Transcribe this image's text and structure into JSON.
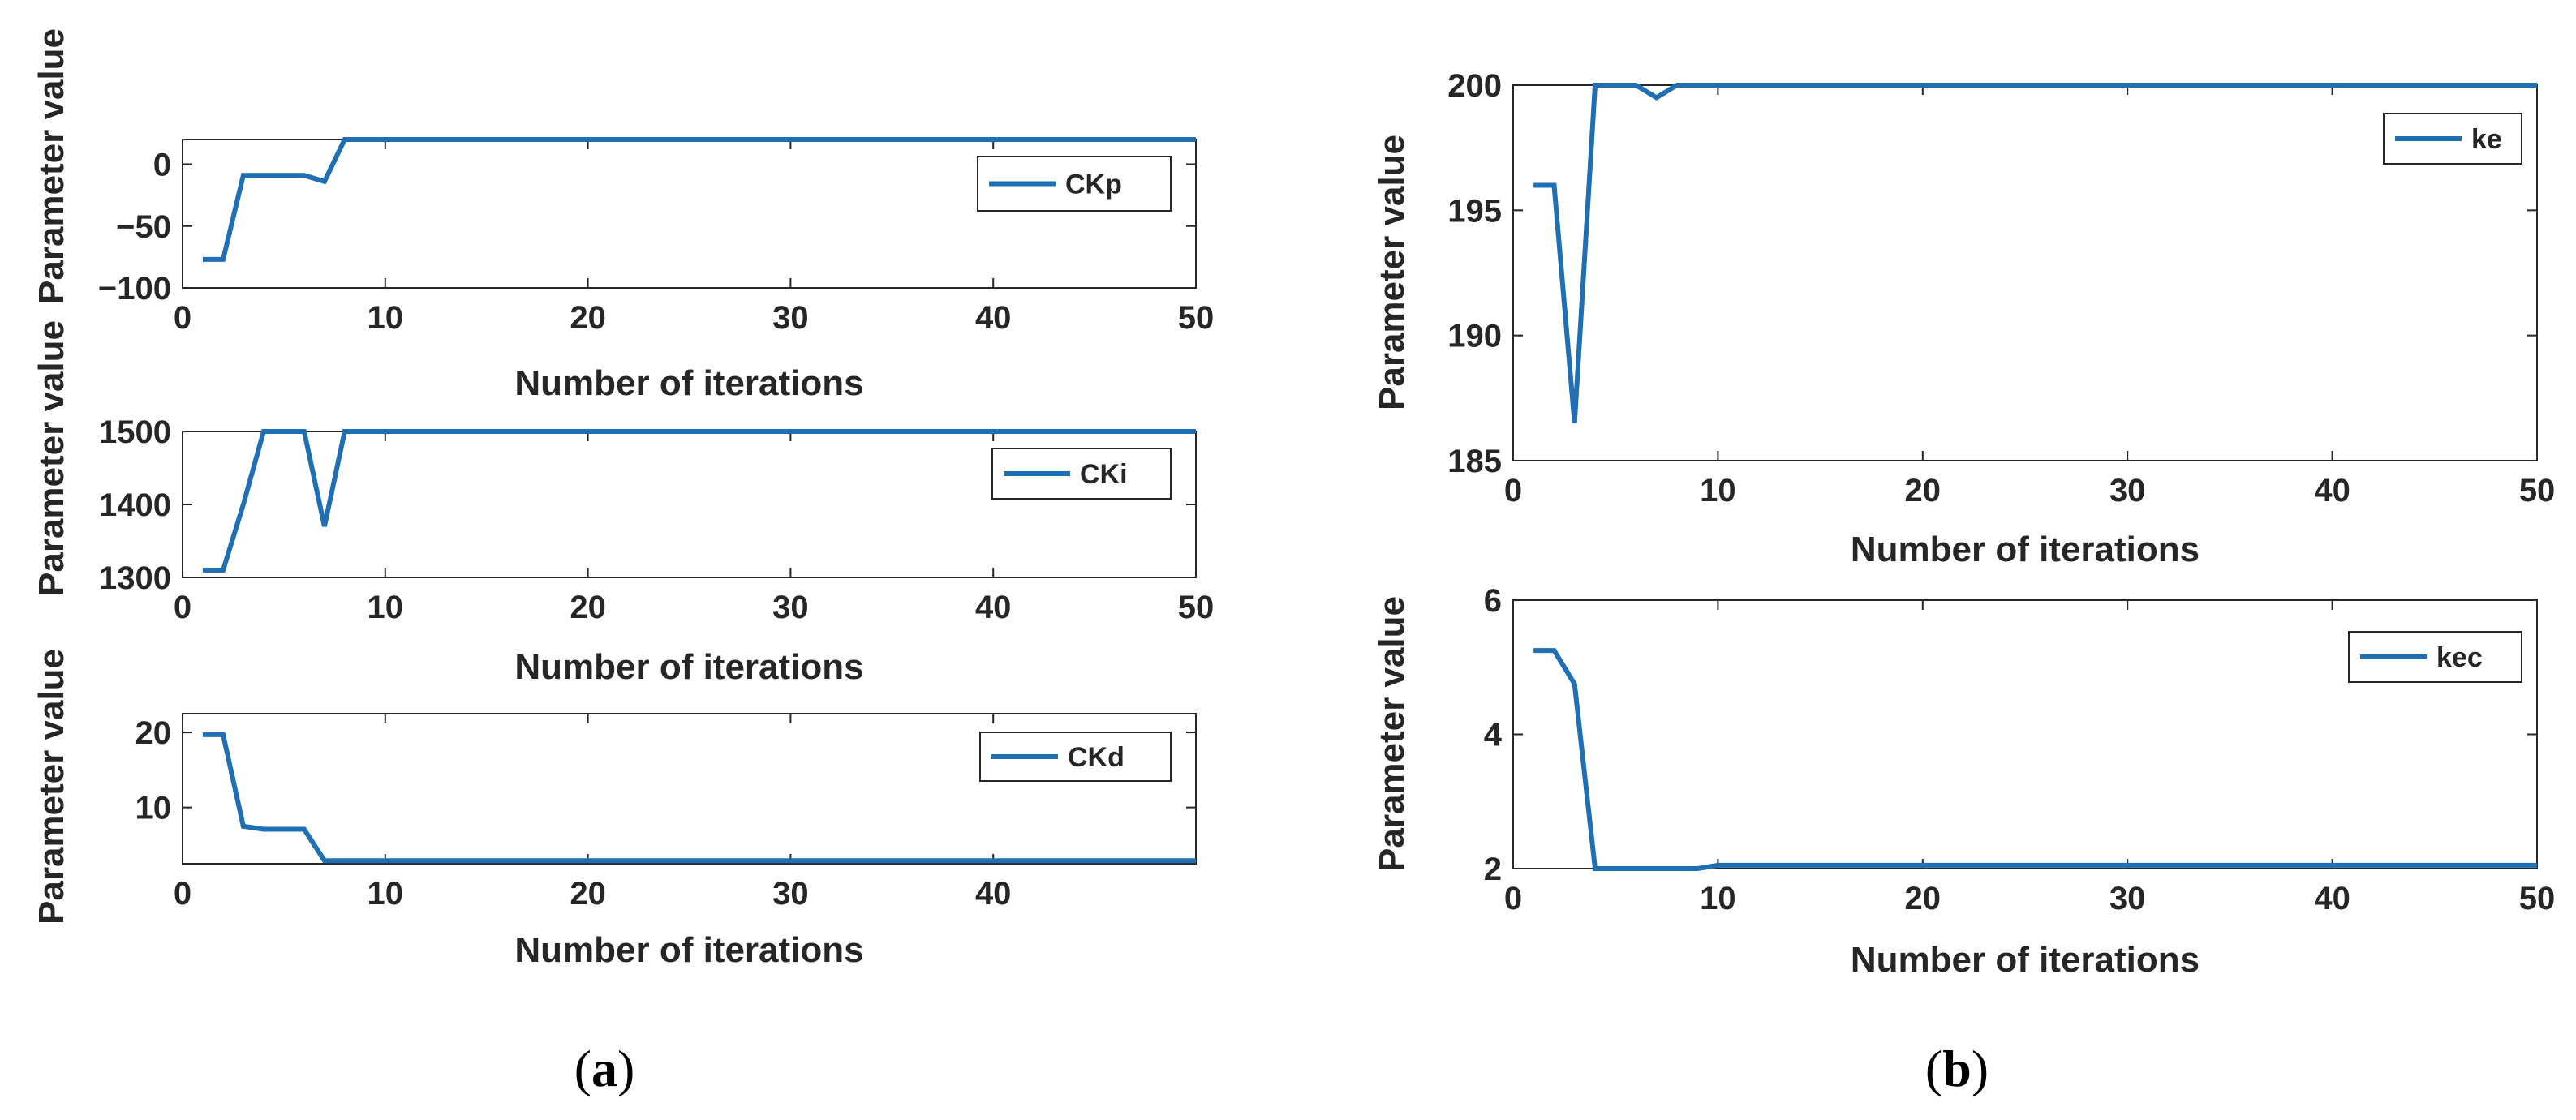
{
  "panel_labels": {
    "a": {
      "open": "(",
      "letter": "a",
      "close": ")"
    },
    "b": {
      "open": "(",
      "letter": "b",
      "close": ")"
    }
  },
  "colors": {
    "line": "#1f6fb4",
    "axis": "#262626",
    "legend_box": "#262626"
  },
  "chart_data": [
    {
      "id": "ckp",
      "type": "line",
      "xlabel": "Number of iterations",
      "ylabel": "Parameter value",
      "xlim": [
        0,
        50
      ],
      "ylim": [
        -100,
        20
      ],
      "xticks": [
        0,
        10,
        20,
        30,
        40,
        50
      ],
      "xtick_labels": [
        "0",
        "10",
        "20",
        "30",
        "40",
        "50"
      ],
      "yticks": [
        -100,
        -50,
        0
      ],
      "ytick_labels": [
        "−100",
        "−50",
        "0"
      ],
      "grid": false,
      "legend_placement": "top-right",
      "series": [
        {
          "name": "CKp",
          "x": [
            1,
            2,
            3,
            4,
            5,
            6,
            7,
            8,
            9,
            50
          ],
          "y": [
            -77,
            -77,
            -9,
            -9,
            -9,
            -9,
            -14,
            20,
            20,
            20
          ]
        }
      ]
    },
    {
      "id": "cki",
      "type": "line",
      "xlabel": "Number of iterations",
      "ylabel": "Parameter value",
      "xlim": [
        0,
        50
      ],
      "ylim": [
        1300,
        1500
      ],
      "xticks": [
        0,
        10,
        20,
        30,
        40,
        50
      ],
      "xtick_labels": [
        "0",
        "10",
        "20",
        "30",
        "40",
        "50"
      ],
      "yticks": [
        1300,
        1400,
        1500
      ],
      "ytick_labels": [
        "1300",
        "1400",
        "1500"
      ],
      "grid": false,
      "legend_placement": "top-right",
      "series": [
        {
          "name": "CKi",
          "x": [
            1,
            2,
            3,
            4,
            5,
            6,
            7,
            8,
            50
          ],
          "y": [
            1310,
            1310,
            1400,
            1500,
            1500,
            1500,
            1370,
            1500,
            1500
          ]
        }
      ]
    },
    {
      "id": "ckd",
      "type": "line",
      "xlabel": "Number of iterations",
      "ylabel": "Parameter value",
      "xlim": [
        0,
        50
      ],
      "ylim": [
        2.5,
        22.5
      ],
      "xticks": [
        0,
        10,
        20,
        30,
        40
      ],
      "xtick_labels": [
        "0",
        "10",
        "20",
        "30",
        "40"
      ],
      "yticks": [
        10,
        20
      ],
      "ytick_labels": [
        "10",
        "20"
      ],
      "grid": false,
      "legend_placement": "top-right",
      "series": [
        {
          "name": "CKd",
          "x": [
            1,
            2,
            3,
            4,
            5,
            6,
            7,
            8,
            50
          ],
          "y": [
            19.7,
            19.7,
            7.5,
            7.1,
            7.1,
            7.1,
            2.9,
            2.9,
            2.9
          ]
        }
      ]
    },
    {
      "id": "ke",
      "type": "line",
      "xlabel": "Number of iterations",
      "ylabel": "Parameter value",
      "xlim": [
        0,
        50
      ],
      "ylim": [
        185,
        200
      ],
      "xticks": [
        0,
        10,
        20,
        30,
        40,
        50
      ],
      "xtick_labels": [
        "0",
        "10",
        "20",
        "30",
        "40",
        "50"
      ],
      "yticks": [
        185,
        190,
        195,
        200
      ],
      "ytick_labels": [
        "185",
        "190",
        "195",
        "200"
      ],
      "grid": false,
      "legend_placement": "top-right",
      "series": [
        {
          "name": "ke",
          "x": [
            1,
            2,
            3,
            4,
            5,
            6,
            7,
            8,
            9,
            50
          ],
          "y": [
            196,
            196,
            186.5,
            200,
            200,
            200,
            199.5,
            200,
            200,
            200
          ]
        }
      ]
    },
    {
      "id": "kec",
      "type": "line",
      "xlabel": "Number of iterations",
      "ylabel": "Parameter value",
      "xlim": [
        0,
        50
      ],
      "ylim": [
        2,
        6
      ],
      "xticks": [
        0,
        10,
        20,
        30,
        40,
        50
      ],
      "xtick_labels": [
        "0",
        "10",
        "20",
        "30",
        "40",
        "50"
      ],
      "yticks": [
        2,
        4,
        6
      ],
      "ytick_labels": [
        "2",
        "4",
        "6"
      ],
      "grid": false,
      "legend_placement": "top-right",
      "series": [
        {
          "name": "kec",
          "x": [
            1,
            2,
            3,
            4,
            5,
            6,
            7,
            8,
            9,
            10,
            50
          ],
          "y": [
            5.25,
            5.25,
            4.75,
            2.0,
            2.0,
            2.0,
            2.0,
            2.0,
            2.0,
            2.05,
            2.05
          ]
        }
      ]
    }
  ]
}
